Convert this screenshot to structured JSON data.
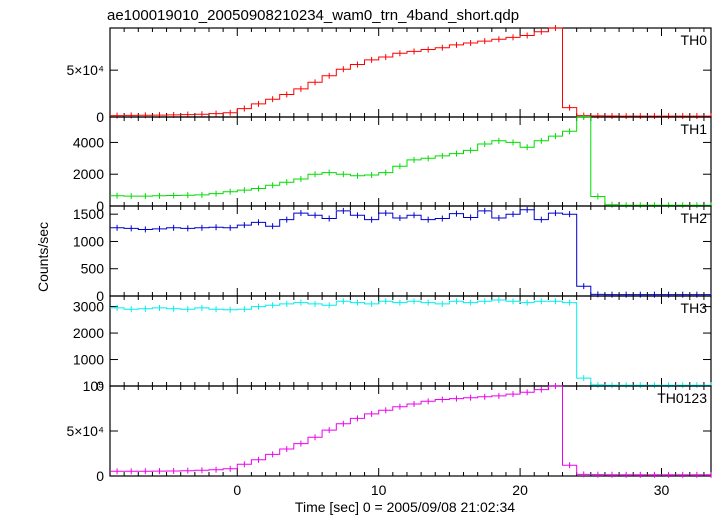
{
  "chart_data": {
    "type": "line",
    "title": "ae100019010_20050908210234_wam0_trn_4band_short.qdp",
    "xlabel": "Time [sec] 0 = 2005/09/08 21:02:34",
    "ylabel": "Counts/sec",
    "xlim": [
      -9,
      33.5
    ],
    "x_ticks": [
      0,
      10,
      20,
      30
    ],
    "x": [
      -9,
      -8,
      -7,
      -6,
      -5,
      -4,
      -3,
      -2,
      -1,
      0,
      1,
      2,
      3,
      4,
      5,
      6,
      7,
      8,
      9,
      10,
      11,
      12,
      13,
      14,
      15,
      16,
      17,
      18,
      19,
      20,
      21,
      22,
      23,
      24,
      25,
      26,
      27,
      28,
      29,
      30,
      31,
      32,
      33
    ],
    "panels": [
      {
        "name": "TH0",
        "color": "#ff0000",
        "ylim": [
          0,
          95000
        ],
        "y_ticks": [
          {
            "value": 0,
            "label": "0"
          },
          {
            "value": 50000,
            "label": "5×10⁴"
          }
        ],
        "values": [
          1500,
          1700,
          1800,
          2000,
          2200,
          2600,
          3000,
          3600,
          4500,
          9000,
          14000,
          19000,
          24000,
          30000,
          37000,
          44000,
          51000,
          56000,
          61000,
          64000,
          68000,
          70000,
          72000,
          74000,
          77000,
          79000,
          81000,
          83000,
          85000,
          87000,
          91000,
          95000,
          10000,
          1500,
          1200,
          1100,
          1000,
          1000,
          1000,
          1000,
          1000,
          1000,
          1000
        ]
      },
      {
        "name": "TH1",
        "color": "#00dd00",
        "ylim": [
          0,
          5600
        ],
        "y_ticks": [
          {
            "value": 0,
            "label": "0"
          },
          {
            "value": 2000,
            "label": "2000"
          },
          {
            "value": 4000,
            "label": "4000"
          }
        ],
        "values": [
          650,
          620,
          620,
          640,
          660,
          680,
          700,
          780,
          900,
          1000,
          1100,
          1300,
          1500,
          1700,
          2000,
          2100,
          2000,
          1900,
          1950,
          2100,
          2500,
          2900,
          3000,
          3150,
          3300,
          3500,
          3900,
          4100,
          4000,
          3700,
          4100,
          4400,
          4700,
          5600,
          600,
          80,
          50,
          50,
          50,
          50,
          50,
          50,
          50
        ]
      },
      {
        "name": "TH2",
        "color": "#0000cc",
        "ylim": [
          0,
          1650
        ],
        "y_ticks": [
          {
            "value": 0,
            "label": "0"
          },
          {
            "value": 500,
            "label": "500"
          },
          {
            "value": 1000,
            "label": "1000"
          },
          {
            "value": 1500,
            "label": "1500"
          }
        ],
        "values": [
          1250,
          1240,
          1220,
          1230,
          1250,
          1240,
          1250,
          1260,
          1250,
          1300,
          1350,
          1280,
          1400,
          1520,
          1480,
          1420,
          1560,
          1480,
          1400,
          1520,
          1430,
          1480,
          1400,
          1420,
          1510,
          1440,
          1560,
          1430,
          1500,
          1580,
          1400,
          1520,
          1500,
          180,
          30,
          25,
          25,
          25,
          25,
          25,
          25,
          25,
          25
        ]
      },
      {
        "name": "TH3",
        "color": "#00eeee",
        "ylim": [
          0,
          3400
        ],
        "y_ticks": [
          {
            "value": 0,
            "label": "0"
          },
          {
            "value": 1000,
            "label": "1000"
          },
          {
            "value": 2000,
            "label": "2000"
          },
          {
            "value": 3000,
            "label": "3000"
          }
        ],
        "values": [
          2950,
          2900,
          2920,
          2950,
          2920,
          2900,
          2950,
          2900,
          2880,
          2900,
          3000,
          3050,
          3100,
          3150,
          3100,
          3050,
          3200,
          3150,
          3100,
          3200,
          3150,
          3200,
          3150,
          3100,
          3200,
          3150,
          3200,
          3250,
          3200,
          3150,
          3200,
          3200,
          3150,
          300,
          40,
          30,
          30,
          30,
          30,
          30,
          30,
          30,
          30
        ]
      },
      {
        "name": "TH0123",
        "color": "#ee00ee",
        "ylim": [
          0,
          100000
        ],
        "y_ticks": [
          {
            "value": 0,
            "label": "0"
          },
          {
            "value": 50000,
            "label": "5×10⁴"
          },
          {
            "value": 100000,
            "label": "10⁵"
          }
        ],
        "values": [
          5200,
          5200,
          5300,
          5400,
          5600,
          5900,
          6300,
          7000,
          8000,
          13000,
          18000,
          24000,
          30000,
          36000,
          43000,
          51000,
          58000,
          64000,
          69000,
          73000,
          77000,
          80000,
          83000,
          85000,
          86000,
          87000,
          88000,
          89000,
          91000,
          93000,
          96000,
          100000,
          12000,
          1800,
          1500,
          1400,
          1300,
          1300,
          1300,
          1300,
          1300,
          1300,
          1300
        ]
      }
    ]
  }
}
